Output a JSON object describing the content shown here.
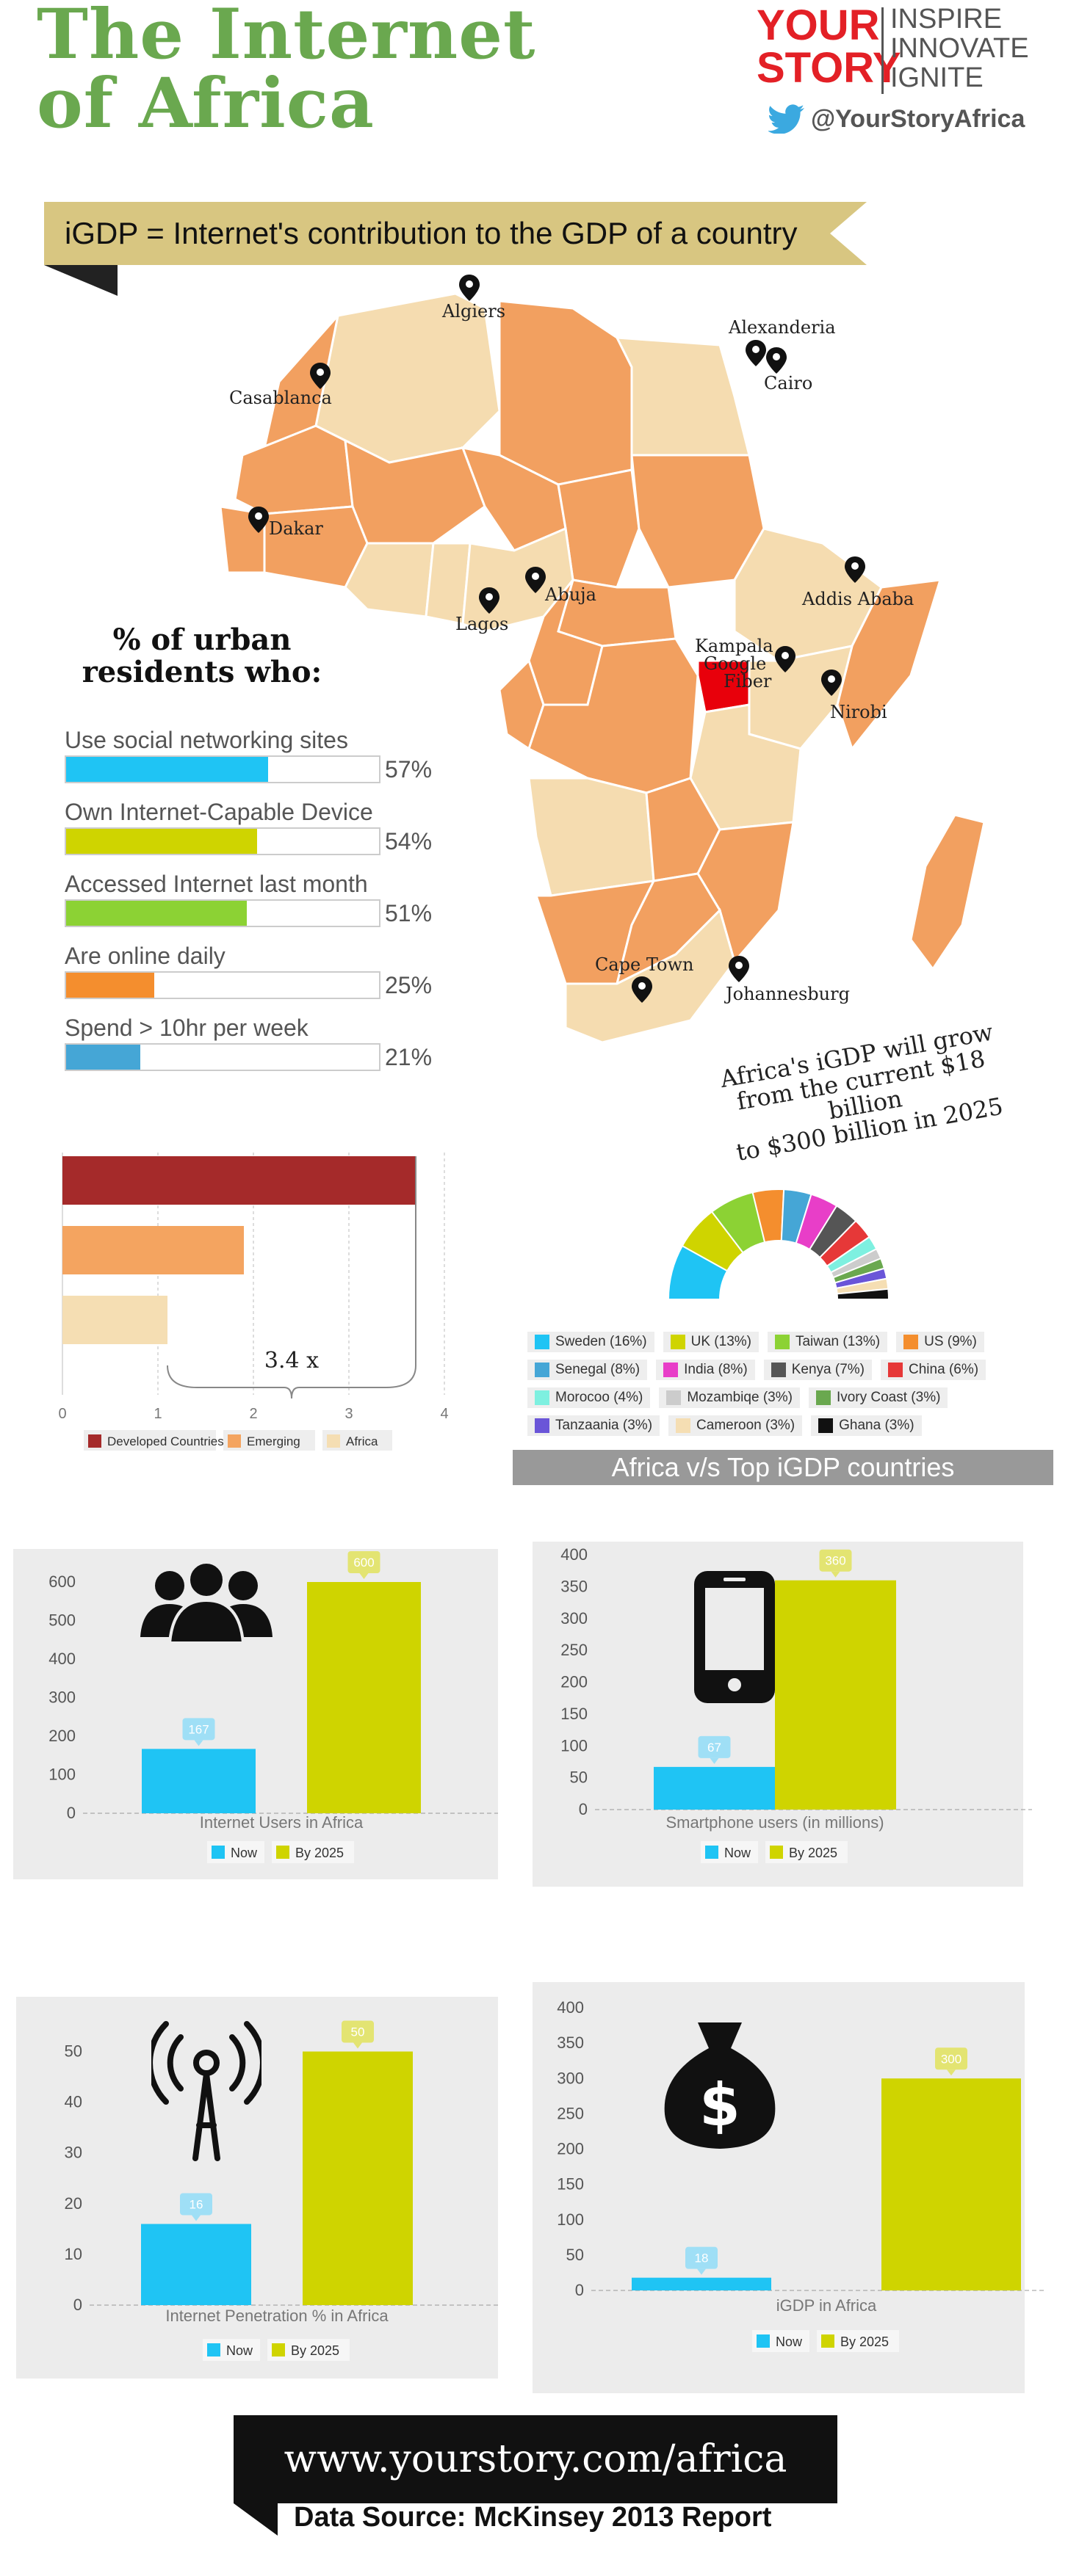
{
  "header": {
    "title_line1": "The Internet",
    "title_line2": "of Africa",
    "brand_your": "YOUR",
    "brand_story": "STORY",
    "brand_words": [
      "INSPIRE",
      "INNOVATE",
      "IGNITE"
    ],
    "twitter_handle": "@YourStoryAfrica"
  },
  "banner": {
    "text": "iGDP = Internet's contribution to the GDP of a country"
  },
  "map": {
    "cities": [
      "Algiers",
      "Alexanderia",
      "Cairo",
      "Casablanca",
      "Dakar",
      "Abuja",
      "Lagos",
      "Addis Ababa",
      "Kampala",
      "Google",
      "Fiber",
      "Nirobi",
      "Cape Town",
      "Johannesburg"
    ],
    "note_lines": [
      "Africa's iGDP will grow",
      "from the current $18 billion",
      "to $300 billion in 2025"
    ],
    "colors": {
      "light": "#f5dcb0",
      "orange": "#f2a060",
      "highlight": "#e8000b",
      "border": "#ffffff"
    }
  },
  "urban": {
    "heading_lines": [
      "% of urban",
      "residents who:"
    ],
    "stats": [
      {
        "label": "Use social networking sites",
        "value": 57,
        "value_text": "57%",
        "color": "#1fc4f4"
      },
      {
        "label": "Own Internet-Capable Device",
        "value": 54,
        "value_text": "54%",
        "color": "#cfd400"
      },
      {
        "label": "Accessed Internet last month",
        "value": 51,
        "value_text": "51%",
        "color": "#8cd234"
      },
      {
        "label": "Are online daily",
        "value": 25,
        "value_text": "25%",
        "color": "#f48e2e"
      },
      {
        "label": "Spend > 10hr per week",
        "value": 21,
        "value_text": "21%",
        "color": "#45a6d6"
      }
    ]
  },
  "chart_data": [
    {
      "type": "bar",
      "orientation": "horizontal",
      "categories": [
        "Developed Countries",
        "Emerging",
        "Africa"
      ],
      "values": [
        3.7,
        1.9,
        1.1
      ],
      "colors": [
        "#a52a2a",
        "#f4a460",
        "#f5deb3"
      ],
      "xlim": [
        0,
        4
      ],
      "xticks": [
        "0",
        "1",
        "2",
        "3",
        "4"
      ],
      "annotation": "3.4 x",
      "legend": [
        "Developed Countries",
        "Emerging",
        "Africa"
      ]
    },
    {
      "type": "pie",
      "title": "Africa v/s Top iGDP countries",
      "series": [
        {
          "name": "Sweden (16%)",
          "value": 16,
          "color": "#1fc4f4"
        },
        {
          "name": "UK (13%)",
          "value": 13,
          "color": "#cfd400"
        },
        {
          "name": "Taiwan (13%)",
          "value": 13,
          "color": "#8cd234"
        },
        {
          "name": "US (9%)",
          "value": 9,
          "color": "#f48e2e"
        },
        {
          "name": "Senegal (8%)",
          "value": 8,
          "color": "#45a6d6"
        },
        {
          "name": "India (8%)",
          "value": 8,
          "color": "#e83ec8"
        },
        {
          "name": "Kenya (7%)",
          "value": 7,
          "color": "#555555"
        },
        {
          "name": "China (6%)",
          "value": 6,
          "color": "#e63838"
        },
        {
          "name": "Morocoo (4%)",
          "value": 4,
          "color": "#7ef0e0"
        },
        {
          "name": "Mozambiqe (3%)",
          "value": 3,
          "color": "#cccccc"
        },
        {
          "name": "Ivory Coast (3%)",
          "value": 3,
          "color": "#6aa84f"
        },
        {
          "name": "Tanzaania (3%)",
          "value": 3,
          "color": "#6a55d8"
        },
        {
          "name": "Cameroon (3%)",
          "value": 3,
          "color": "#f5deb3"
        },
        {
          "name": "Ghana (3%)",
          "value": 3,
          "color": "#111111"
        }
      ]
    },
    {
      "type": "bar",
      "categories": [
        "Now",
        "By 2025"
      ],
      "values": [
        167,
        600
      ],
      "value_labels": [
        "167",
        "600"
      ],
      "xlabel": "Internet Users in Africa",
      "ylim": [
        0,
        600
      ],
      "yticks": [
        "0",
        "100",
        "200",
        "300",
        "400",
        "500",
        "600"
      ],
      "colors": [
        "#1fc4f4",
        "#cfd400"
      ],
      "legend": [
        "Now",
        "By 2025"
      ],
      "icon": "people-icon"
    },
    {
      "type": "bar",
      "categories": [
        "Now",
        "By 2025"
      ],
      "values": [
        67,
        360
      ],
      "value_labels": [
        "67",
        "360"
      ],
      "xlabel": "Smartphone users (in millions)",
      "ylim": [
        0,
        400
      ],
      "yticks": [
        "0",
        "50",
        "100",
        "150",
        "200",
        "250",
        "300",
        "350",
        "400"
      ],
      "colors": [
        "#1fc4f4",
        "#cfd400"
      ],
      "legend": [
        "Now",
        "By 2025"
      ],
      "icon": "smartphone-icon"
    },
    {
      "type": "bar",
      "categories": [
        "Now",
        "By 2025"
      ],
      "values": [
        16,
        50
      ],
      "value_labels": [
        "16",
        "50"
      ],
      "xlabel": "Internet Penetration % in Africa",
      "ylim": [
        0,
        55
      ],
      "yticks": [
        "0",
        "10",
        "20",
        "30",
        "40",
        "50"
      ],
      "colors": [
        "#1fc4f4",
        "#cfd400"
      ],
      "legend": [
        "Now",
        "By 2025"
      ],
      "icon": "antenna-icon"
    },
    {
      "type": "bar",
      "categories": [
        "Now",
        "By 2025"
      ],
      "values": [
        18,
        300
      ],
      "value_labels": [
        "18",
        "300"
      ],
      "xlabel": "iGDP in Africa",
      "ylim": [
        0,
        400
      ],
      "yticks": [
        "0",
        "50",
        "100",
        "150",
        "200",
        "250",
        "300",
        "350",
        "400"
      ],
      "colors": [
        "#1fc4f4",
        "#cfd400"
      ],
      "legend": [
        "Now",
        "By 2025"
      ],
      "icon": "money-bag-icon"
    }
  ],
  "footer": {
    "url": "www.yourstory.com/africa",
    "source": "Data Source:  McKinsey 2013 Report"
  }
}
